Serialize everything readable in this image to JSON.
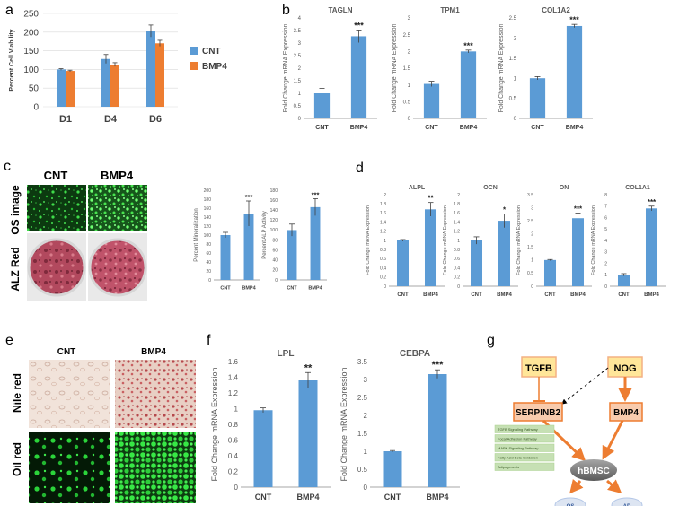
{
  "colors": {
    "cnt": "#5b9bd5",
    "bmp4": "#ed7d31",
    "bar": "#5b9bd5",
    "axis": "#8a8a8a",
    "grid": "#d9d9d9",
    "box_fill": "#f8cbad",
    "box_stroke": "#ed7d31",
    "tgfb_fill": "#ffe699",
    "hub_fill": "#808080",
    "arrow": "#ed7d31",
    "pathway_fill": "#c6e0b4",
    "target_fill": "#dde5f2"
  },
  "panels": {
    "a": "a",
    "b": "b",
    "c": "c",
    "d": "d",
    "e": "e",
    "f": "f",
    "g": "g"
  },
  "images": {
    "c": {
      "col_cnt": "CNT",
      "col_bmp4": "BMP4",
      "row_os": "OS image",
      "row_alz": "ALZ Red"
    },
    "e": {
      "col_cnt": "CNT",
      "col_bmp4": "BMP4",
      "row_nile": "Nile red",
      "row_oil": "Oil red"
    }
  },
  "diagram": {
    "tgfb": "TGFB",
    "nog": "NOG",
    "serpinb2": "SERPINB2",
    "bmp4": "BMP4",
    "hub": "hBMSC",
    "os": "OS",
    "ad": "AD",
    "pathways": [
      "TGFB Signaling Pathway",
      "Focal Adhesion Pathway",
      "MAPK Signaling Pathway",
      "Fatty Acid Beta Oxidation",
      "Adipogenesis"
    ]
  },
  "chart_data": [
    {
      "id": "a",
      "type": "bar",
      "title": "",
      "xlabel": "",
      "ylabel": "Percent Cell Viability",
      "categories": [
        "D1",
        "D4",
        "D6"
      ],
      "ylim": [
        0,
        250
      ],
      "yticks": [
        0,
        50,
        100,
        150,
        200,
        250
      ],
      "series": [
        {
          "name": "CNT",
          "values": [
            100,
            128,
            203
          ],
          "errors": [
            2,
            12,
            16
          ]
        },
        {
          "name": "BMP4",
          "values": [
            96,
            113,
            170
          ],
          "errors": [
            2,
            5,
            8
          ]
        }
      ],
      "legend": "right"
    },
    {
      "id": "b1",
      "type": "bar",
      "title": "TAGLN",
      "ylabel": "Fold Change mRNA Expression",
      "categories": [
        "CNT",
        "BMP4"
      ],
      "values": [
        1,
        3.27
      ],
      "errors": [
        0.2,
        0.25
      ],
      "sig": [
        "",
        "***"
      ],
      "ylim": [
        0,
        4
      ],
      "yticks": [
        "0",
        "0.5",
        "1",
        "1.5",
        "2",
        "2.5",
        "3",
        "3.5",
        "4"
      ]
    },
    {
      "id": "b2",
      "type": "bar",
      "title": "TPM1",
      "ylabel": "Fold Change mRNA Expression",
      "categories": [
        "CNT",
        "BMP4"
      ],
      "values": [
        1.03,
        2.0
      ],
      "errors": [
        0.08,
        0.04
      ],
      "sig": [
        "",
        "***"
      ],
      "ylim": [
        0,
        3
      ],
      "yticks": [
        "0",
        "0.5",
        "1",
        "1.5",
        "2",
        "2.5",
        "3"
      ]
    },
    {
      "id": "b3",
      "type": "bar",
      "title": "COL1A2",
      "ylabel": "Fold Change mRNA Expression",
      "categories": [
        "CNT",
        "BMP4"
      ],
      "values": [
        1.0,
        2.3
      ],
      "errors": [
        0.04,
        0.04
      ],
      "sig": [
        "",
        "***"
      ],
      "ylim": [
        0,
        2.5
      ],
      "yticks": [
        "0",
        "0.5",
        "1",
        "1.5",
        "2",
        "2.5"
      ]
    },
    {
      "id": "c1",
      "type": "bar",
      "title": "",
      "ylabel": "Percent Mineralization",
      "categories": [
        "CNT",
        "BMP4"
      ],
      "values": [
        100,
        148
      ],
      "errors": [
        6,
        28
      ],
      "sig": [
        "",
        "***"
      ],
      "ylim": [
        0,
        200
      ],
      "yticks": [
        "0",
        "20",
        "40",
        "60",
        "80",
        "100",
        "120",
        "140",
        "160",
        "180",
        "200"
      ]
    },
    {
      "id": "c2",
      "type": "bar",
      "title": "",
      "ylabel": "Percent ALP Activity",
      "categories": [
        "CNT",
        "BMP4"
      ],
      "values": [
        100,
        146
      ],
      "errors": [
        12,
        17
      ],
      "sig": [
        "",
        "***"
      ],
      "ylim": [
        0,
        180
      ],
      "yticks": [
        "0",
        "20",
        "40",
        "60",
        "80",
        "100",
        "120",
        "140",
        "160",
        "180"
      ]
    },
    {
      "id": "d1",
      "type": "bar",
      "title": "ALPL",
      "ylabel": "Fold Change mRNA Expression",
      "categories": [
        "CNT",
        "BMP4"
      ],
      "values": [
        1.0,
        1.68
      ],
      "errors": [
        0.02,
        0.15
      ],
      "sig": [
        "",
        "**"
      ],
      "ylim": [
        0,
        2
      ],
      "yticks": [
        "0",
        "0.2",
        "0.4",
        "0.6",
        "0.8",
        "1",
        "1.2",
        "1.4",
        "1.6",
        "1.8",
        "2"
      ]
    },
    {
      "id": "d2",
      "type": "bar",
      "title": "OCN",
      "ylabel": "Fold Change mRNA Expression",
      "categories": [
        "CNT",
        "BMP4"
      ],
      "values": [
        1.0,
        1.43
      ],
      "errors": [
        0.08,
        0.15
      ],
      "sig": [
        "",
        "*"
      ],
      "ylim": [
        0,
        2
      ],
      "yticks": [
        "0",
        "0.2",
        "0.4",
        "0.6",
        "0.8",
        "1",
        "1.2",
        "1.4",
        "1.6",
        "1.8",
        "2"
      ]
    },
    {
      "id": "d3",
      "type": "bar",
      "title": "ON",
      "ylabel": "Fold Change mRNA Expression",
      "categories": [
        "CNT",
        "BMP4"
      ],
      "values": [
        1.0,
        2.6
      ],
      "errors": [
        0.02,
        0.2
      ],
      "sig": [
        "",
        "***"
      ],
      "ylim": [
        0,
        3.5
      ],
      "yticks": [
        "0",
        "0.5",
        "1",
        "1.5",
        "2",
        "2.5",
        "3",
        "3.5"
      ]
    },
    {
      "id": "d4",
      "type": "bar",
      "title": "COL1A1",
      "ylabel": "Fold Change mRNA Expression",
      "categories": [
        "CNT",
        "BMP4"
      ],
      "values": [
        1.0,
        6.8
      ],
      "errors": [
        0.1,
        0.2
      ],
      "sig": [
        "",
        "***"
      ],
      "ylim": [
        0,
        8
      ],
      "yticks": [
        "0",
        "1",
        "2",
        "3",
        "4",
        "5",
        "6",
        "7",
        "8"
      ]
    },
    {
      "id": "f1",
      "type": "bar",
      "title": "LPL",
      "ylabel": "Fold Change mRNA Expression",
      "categories": [
        "CNT",
        "BMP4"
      ],
      "values": [
        0.98,
        1.36
      ],
      "errors": [
        0.03,
        0.1
      ],
      "sig": [
        "",
        "**"
      ],
      "ylim": [
        0,
        1.6
      ],
      "yticks": [
        "0",
        "0.2",
        "0.4",
        "0.6",
        "0.8",
        "1",
        "1.2",
        "1.4",
        "1.6"
      ]
    },
    {
      "id": "f2",
      "type": "bar",
      "title": "CEBPA",
      "ylabel": "Fold Change mRNA Expression",
      "categories": [
        "CNT",
        "BMP4"
      ],
      "values": [
        1.0,
        3.15
      ],
      "errors": [
        0.02,
        0.12
      ],
      "sig": [
        "",
        "***"
      ],
      "ylim": [
        0,
        3.5
      ],
      "yticks": [
        "0",
        "0.5",
        "1",
        "1.5",
        "2",
        "2.5",
        "3",
        "3.5"
      ]
    }
  ]
}
